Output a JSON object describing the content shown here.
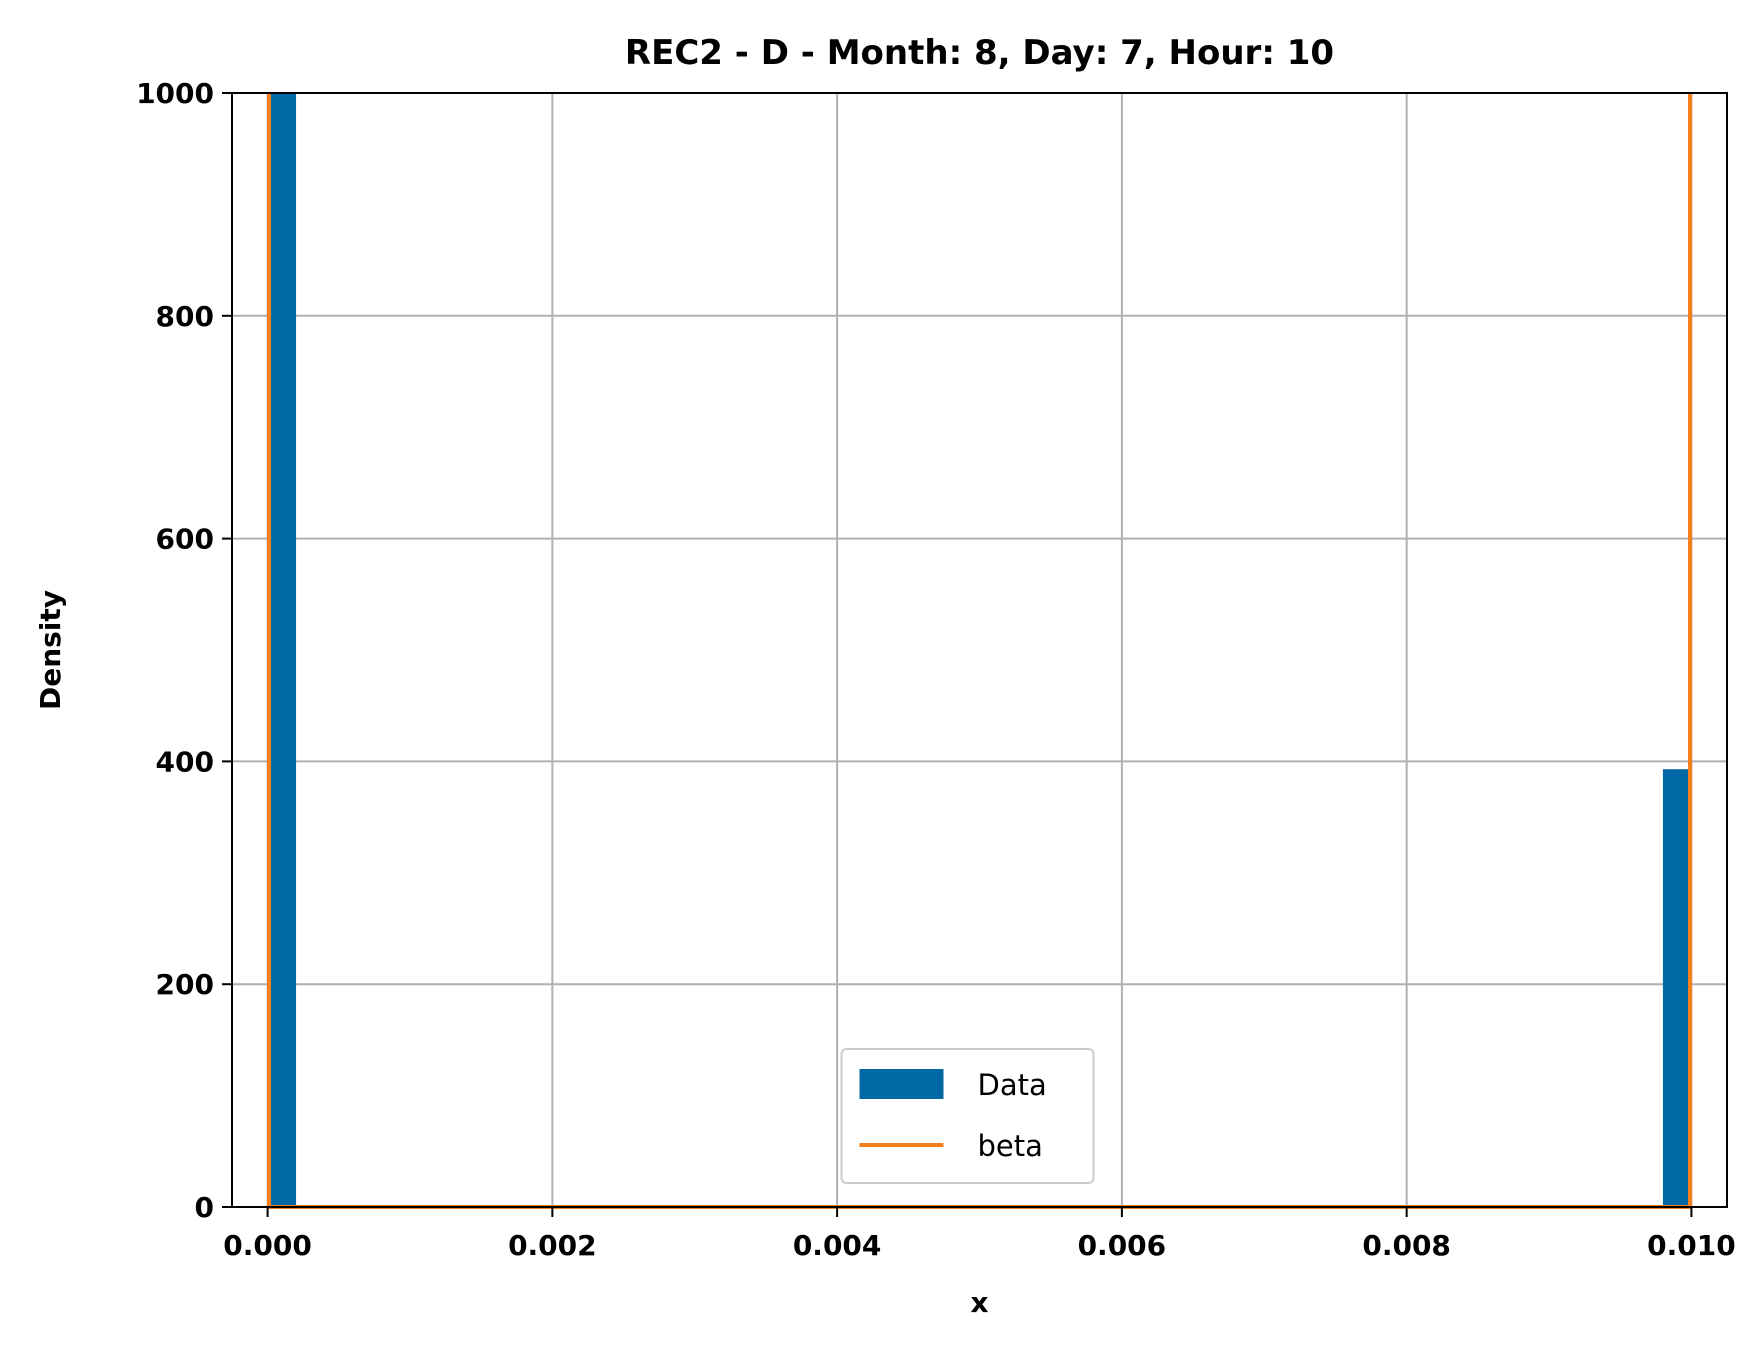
{
  "chart_data": {
    "type": "bar",
    "title": "REC2 - D - Month: 8, Day: 7, Hour: 10",
    "xlabel": "x",
    "ylabel": "Density",
    "xlim": [
      -0.00025,
      0.01025
    ],
    "ylim": [
      0,
      1000
    ],
    "xticks": [
      0,
      0.002,
      0.004,
      0.006,
      0.008,
      0.01
    ],
    "xtick_labels": [
      "0.000",
      "0.002",
      "0.004",
      "0.006",
      "0.008",
      "0.010"
    ],
    "yticks": [
      0,
      200,
      400,
      600,
      800,
      1000
    ],
    "ytick_labels": [
      "0",
      "200",
      "400",
      "600",
      "800",
      "1000"
    ],
    "grid": true,
    "legend_position": "lower-center",
    "series": [
      {
        "name": "Data",
        "kind": "histogram",
        "color": "#0069a5",
        "bins": [
          {
            "x0": 0.0,
            "x1": 0.0002,
            "height": 1000
          },
          {
            "x0": 0.0098,
            "x1": 0.01,
            "height": 393
          }
        ]
      },
      {
        "name": "beta",
        "kind": "line",
        "color": "#f5801c",
        "points": [
          [
            1e-05,
            1000
          ],
          [
            1e-05,
            0
          ],
          [
            0.00999,
            0
          ],
          [
            0.00999,
            1000
          ]
        ]
      }
    ]
  }
}
